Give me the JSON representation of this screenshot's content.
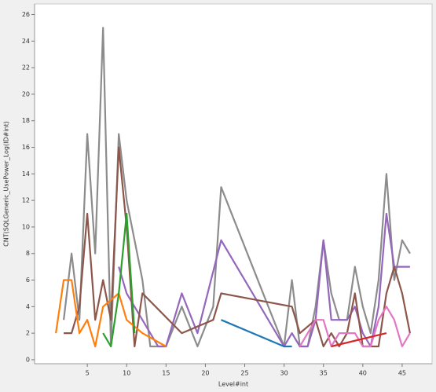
{
  "chart_data": {
    "type": "line",
    "xlabel": "Level#int",
    "ylabel": "CNT(SQLGeneric_UsePower_Log(ID#int)",
    "xlim": [
      -1.7,
      48.8
    ],
    "xticks": [
      5,
      10,
      15,
      20,
      25,
      30,
      35,
      40,
      45
    ],
    "ylim": [
      -0.3,
      26.8
    ],
    "yticks": [
      0,
      2,
      4,
      6,
      8,
      10,
      12,
      14,
      16,
      18,
      20,
      22,
      24,
      26
    ],
    "series": [
      {
        "color": "#8c8c8c",
        "x": [
          2,
          3,
          4,
          5,
          6,
          7,
          8,
          9,
          10,
          11,
          12,
          13,
          15,
          17,
          19,
          21,
          22,
          30,
          31,
          32,
          33,
          34,
          35,
          36,
          37,
          38,
          39,
          40,
          41,
          42,
          43,
          44,
          45,
          46
        ],
        "values": [
          3,
          8,
          3,
          17,
          8,
          25,
          1,
          17,
          12,
          9,
          6,
          1,
          1,
          4,
          1,
          4,
          13,
          1,
          6,
          1,
          1,
          4,
          9,
          5,
          3,
          3,
          7,
          4,
          2,
          6,
          14,
          6,
          9,
          8
        ]
      },
      {
        "color": "#9467bd",
        "x": [
          9,
          10,
          14,
          15,
          17,
          19,
          22,
          30,
          31,
          32,
          33,
          34,
          35,
          36,
          38,
          39,
          40,
          41,
          42,
          43,
          44,
          46
        ],
        "values": [
          7,
          5,
          1,
          1,
          5,
          2,
          9,
          1,
          2,
          1,
          1,
          3,
          9,
          3,
          3,
          4,
          2,
          1,
          4,
          11,
          7,
          7
        ]
      },
      {
        "color": "#8c564b",
        "x": [
          2,
          3,
          4,
          5,
          6,
          7,
          8,
          9,
          10,
          11,
          12,
          17,
          21,
          22,
          31,
          32,
          34,
          35,
          36,
          37,
          38,
          39,
          40,
          41,
          42,
          43,
          44,
          45,
          46
        ],
        "values": [
          2,
          2,
          4,
          11,
          3,
          6,
          3,
          16,
          10,
          1,
          5,
          2,
          3,
          5,
          4,
          2,
          3,
          1,
          2,
          1,
          2,
          5,
          1,
          1,
          1,
          5,
          7,
          5,
          2
        ]
      },
      {
        "color": "#ff7f0e",
        "x": [
          1,
          2,
          3,
          4,
          5,
          6,
          7,
          9,
          10,
          12,
          15
        ],
        "values": [
          2,
          6,
          6,
          2,
          3,
          1,
          4,
          5,
          3,
          2,
          1
        ]
      },
      {
        "color": "#2ca02c",
        "x": [
          7,
          8,
          9,
          10,
          11
        ],
        "values": [
          2,
          1,
          5,
          11,
          2
        ]
      },
      {
        "color": "#1f77b4",
        "x": [
          22,
          30,
          31
        ],
        "values": [
          3,
          1,
          1
        ]
      },
      {
        "color": "#e377c2",
        "x": [
          32,
          33,
          34,
          35,
          36,
          37,
          38,
          39,
          40,
          41,
          42,
          43,
          44,
          45,
          46
        ],
        "values": [
          1,
          2,
          3,
          3,
          1,
          2,
          2,
          2,
          1,
          1,
          3,
          4,
          3,
          1,
          2
        ]
      },
      {
        "color": "#d62728",
        "x": [
          36,
          43
        ],
        "values": [
          1,
          2
        ]
      }
    ]
  }
}
